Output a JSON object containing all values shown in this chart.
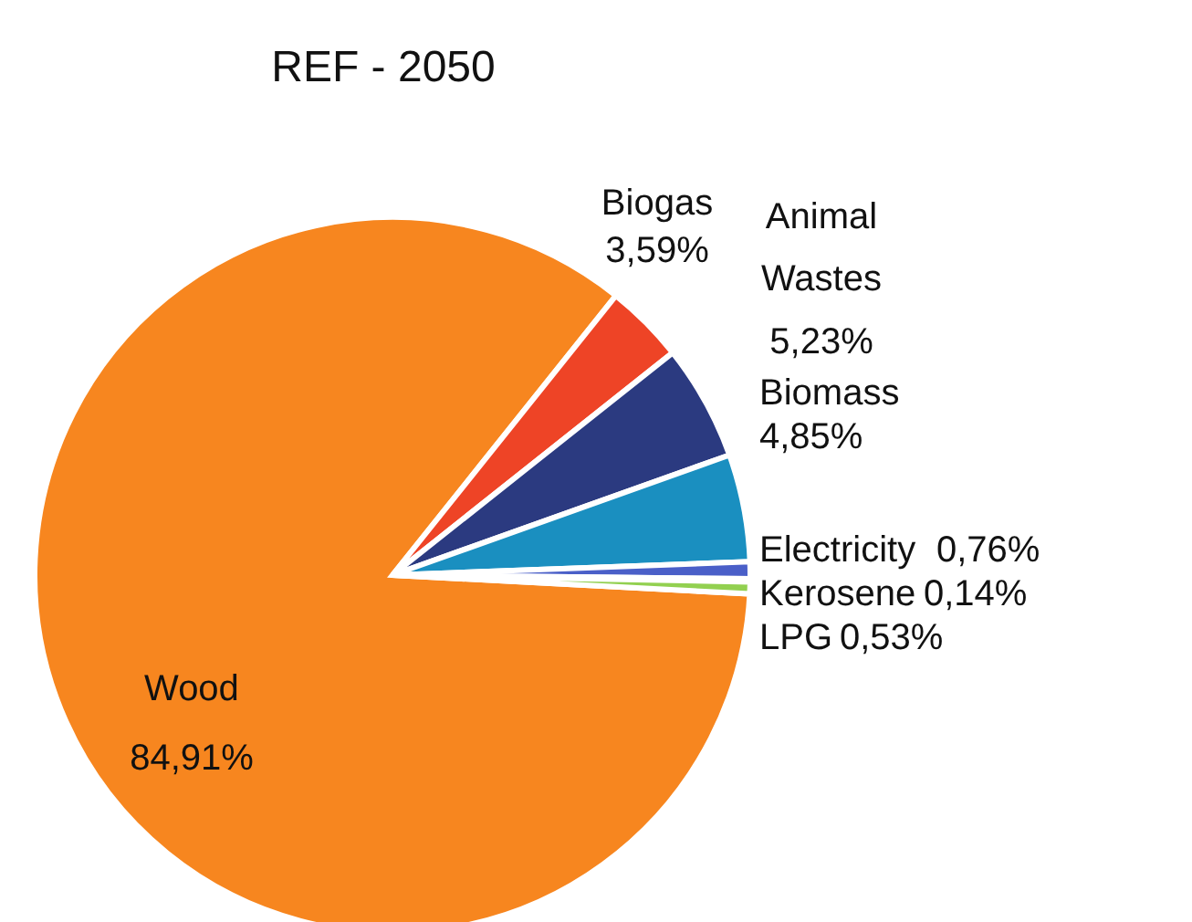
{
  "chart_data": {
    "type": "pie",
    "title": "REF - 2050",
    "categories": [
      "Wood",
      "Biogas",
      "Animal Wastes",
      "Biomass",
      "Electricity",
      "Kerosene",
      "LPG"
    ],
    "values": [
      84.91,
      3.59,
      5.23,
      4.85,
      0.76,
      0.14,
      0.53
    ],
    "value_labels": [
      "84,91%",
      "3,59%",
      "5,23%",
      "4,85%",
      "0,76%",
      "0,14%",
      "0,53%"
    ],
    "colors": [
      "#f7861f",
      "#ee4426",
      "#2b3a80",
      "#1a8fc0",
      "#4a5fc8",
      "#9db3e0",
      "#92d050"
    ],
    "legend": false
  }
}
